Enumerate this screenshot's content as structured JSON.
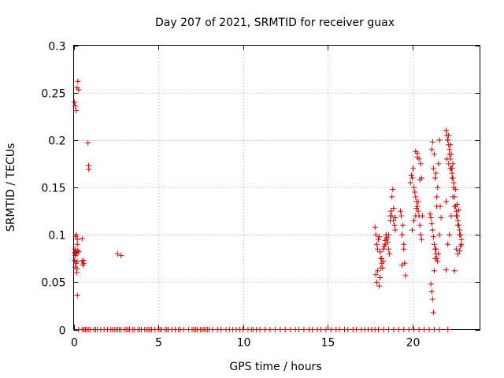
{
  "chart_data": {
    "type": "scatter",
    "title": "Day 207 of 2021, SRMTID for receiver guax",
    "xlabel": "GPS time / hours",
    "ylabel": "SRMTID / TECUs",
    "xlim": [
      0,
      24
    ],
    "ylim": [
      0,
      0.3
    ],
    "x_ticks": [
      0,
      5,
      10,
      15,
      20
    ],
    "x_tick_labels": [
      "0",
      "5",
      "10",
      "15",
      "20"
    ],
    "y_ticks": [
      0,
      0.05,
      0.1,
      0.15,
      0.2,
      0.25,
      0.3
    ],
    "y_tick_labels": [
      "0",
      "0.05",
      "0.1",
      "0.15",
      "0.2",
      "0.25",
      "0.3"
    ],
    "grid": true,
    "marker": "+",
    "color": "#cc0000",
    "series": [
      {
        "name": "SRMTID",
        "x": [
          0.05,
          0.08,
          0.1,
          0.12,
          0.15,
          0.18,
          0.2,
          0.22,
          0.05,
          0.1,
          0.15,
          0.2,
          0.25,
          0.12,
          0.18,
          0.22,
          0.25,
          0.3,
          0.05,
          0.1,
          0.15,
          0.2,
          0.22,
          0.3,
          0.5,
          0.55,
          0.58,
          0.5,
          0.6,
          0.85,
          0.88,
          0.9,
          2.6,
          2.8,
          17.8,
          17.85,
          17.9,
          17.95,
          18.0,
          18.05,
          18.1,
          18.15,
          18.2,
          18.25,
          18.3,
          18.35,
          18.4,
          18.45,
          18.5,
          18.55,
          18.6,
          18.65,
          18.7,
          18.75,
          18.8,
          18.85,
          18.9,
          18.95,
          19.0,
          17.85,
          17.9,
          17.95,
          18.05,
          18.1,
          18.15,
          18.2,
          18.3,
          18.4,
          18.5,
          18.6,
          18.7,
          18.8,
          18.9,
          19.0,
          19.3,
          19.35,
          19.4,
          19.45,
          19.5,
          19.55,
          19.4,
          19.5,
          19.6,
          19.9,
          19.95,
          20.0,
          20.05,
          20.1,
          20.15,
          20.2,
          20.25,
          20.3,
          20.35,
          20.4,
          20.45,
          20.5,
          20.55,
          20.6,
          20.0,
          20.1,
          20.2,
          20.3,
          20.4,
          20.5,
          20.55,
          20.2,
          20.3,
          20.45,
          20.35,
          20.25,
          21.05,
          21.1,
          21.15,
          21.2,
          21.25,
          21.3,
          21.35,
          21.4,
          21.45,
          21.5,
          21.55,
          21.6,
          21.65,
          21.7,
          21.1,
          21.15,
          21.2,
          21.25,
          21.3,
          21.35,
          21.4,
          21.45,
          21.5,
          21.55,
          21.6,
          21.15,
          21.25,
          21.35,
          21.45,
          21.2,
          21.3,
          21.4,
          22.0,
          22.05,
          22.1,
          22.15,
          22.2,
          22.25,
          22.3,
          22.35,
          22.4,
          22.45,
          22.5,
          22.55,
          22.6,
          22.65,
          22.7,
          22.75,
          22.8,
          22.85,
          22.9,
          22.0,
          22.1,
          22.2,
          22.3,
          22.4,
          22.5,
          22.6,
          22.7,
          22.8,
          22.9,
          22.05,
          22.15,
          22.25,
          22.35,
          22.45,
          22.55,
          22.65,
          22.75,
          22.85,
          22.1,
          22.2,
          22.3,
          22.4,
          22.15,
          22.25,
          22.35,
          22.6,
          22.7,
          22.8,
          22.0,
          22.5
        ],
        "y": [
          0.081,
          0.085,
          0.078,
          0.098,
          0.1,
          0.08,
          0.072,
          0.09,
          0.073,
          0.066,
          0.07,
          0.064,
          0.083,
          0.082,
          0.06,
          0.036,
          0.262,
          0.253,
          0.24,
          0.236,
          0.231,
          0.255,
          0.095,
          0.082,
          0.096,
          0.068,
          0.073,
          0.072,
          0.07,
          0.197,
          0.173,
          0.169,
          0.08,
          0.078,
          0.108,
          0.1,
          0.09,
          0.085,
          0.095,
          0.098,
          0.082,
          0.075,
          0.07,
          0.065,
          0.072,
          0.088,
          0.094,
          0.1,
          0.097,
          0.092,
          0.085,
          0.08,
          0.12,
          0.125,
          0.14,
          0.148,
          0.115,
          0.11,
          0.105,
          0.058,
          0.05,
          0.062,
          0.046,
          0.055,
          0.065,
          0.075,
          0.085,
          0.09,
          0.095,
          0.1,
          0.115,
          0.12,
          0.128,
          0.118,
          0.125,
          0.12,
          0.1,
          0.11,
          0.085,
          0.07,
          0.068,
          0.09,
          0.057,
          0.155,
          0.163,
          0.16,
          0.17,
          0.15,
          0.145,
          0.14,
          0.135,
          0.13,
          0.125,
          0.12,
          0.11,
          0.1,
          0.095,
          0.12,
          0.105,
          0.115,
          0.12,
          0.186,
          0.18,
          0.175,
          0.16,
          0.188,
          0.182,
          0.158,
          0.135,
          0.128,
          0.122,
          0.118,
          0.112,
          0.105,
          0.098,
          0.09,
          0.085,
          0.08,
          0.075,
          0.072,
          0.08,
          0.1,
          0.13,
          0.118,
          0.048,
          0.04,
          0.032,
          0.018,
          0.062,
          0.075,
          0.085,
          0.13,
          0.15,
          0.175,
          0.2,
          0.19,
          0.17,
          0.16,
          0.14,
          0.198,
          0.185,
          0.165,
          0.21,
          0.205,
          0.2,
          0.195,
          0.185,
          0.18,
          0.17,
          0.165,
          0.16,
          0.15,
          0.14,
          0.13,
          0.125,
          0.12,
          0.115,
          0.11,
          0.105,
          0.1,
          0.095,
          0.063,
          0.09,
          0.1,
          0.12,
          0.14,
          0.13,
          0.12,
          0.11,
          0.1,
          0.09,
          0.18,
          0.175,
          0.17,
          0.16,
          0.155,
          0.148,
          0.132,
          0.126,
          0.088,
          0.2,
          0.19,
          0.185,
          0.175,
          0.205,
          0.195,
          0.17,
          0.085,
          0.08,
          0.083,
          0.135,
          0.062
        ],
        "zero_x": [
          0.3,
          0.5,
          0.6,
          0.7,
          0.8,
          0.9,
          1.0,
          1.2,
          1.3,
          1.4,
          1.6,
          1.8,
          2.0,
          2.2,
          2.3,
          2.4,
          2.5,
          2.6,
          2.7,
          2.8,
          3.0,
          3.1,
          3.2,
          3.3,
          3.5,
          3.6,
          3.8,
          3.9,
          4.0,
          4.2,
          4.3,
          4.4,
          4.5,
          4.6,
          4.8,
          5.0,
          5.1,
          5.2,
          5.4,
          5.5,
          5.6,
          5.8,
          6.0,
          6.2,
          6.3,
          6.5,
          6.8,
          7.0,
          7.1,
          7.2,
          7.3,
          7.5,
          7.6,
          7.7,
          7.8,
          7.9,
          8.0,
          8.2,
          8.5,
          8.7,
          9.0,
          9.2,
          9.4,
          9.6,
          9.8,
          10.0,
          10.3,
          10.5,
          10.6,
          10.8,
          11.0,
          11.3,
          11.6,
          11.9,
          12.2,
          12.5,
          12.8,
          13.1,
          13.3,
          13.6,
          13.9,
          14.1,
          14.4,
          14.6,
          14.9,
          15.2,
          15.5,
          15.7,
          16.0,
          16.2,
          16.5,
          16.7,
          17.0,
          17.2,
          17.4,
          17.6,
          17.8,
          18.0,
          18.3,
          18.6,
          18.9,
          19.2,
          19.5,
          19.8,
          20.1,
          20.4,
          20.7,
          21.0,
          21.3,
          21.6,
          22.1
        ]
      }
    ]
  }
}
